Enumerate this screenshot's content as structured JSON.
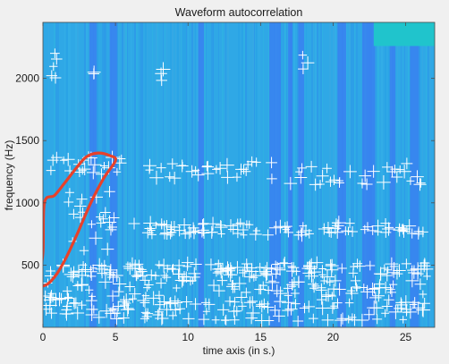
{
  "chart_data": {
    "type": "heatmap",
    "title": "Waveform autocorrelation",
    "xlabel": "time axis (in s.)",
    "ylabel": "frequency (Hz)",
    "xlim": [
      0,
      27
    ],
    "ylim": [
      0,
      2450
    ],
    "xticks": [
      "0",
      "5",
      "10",
      "15",
      "20",
      "25"
    ],
    "xtick_values": [
      0,
      5,
      10,
      15,
      20,
      25
    ],
    "yticks": [
      "500",
      "1000",
      "1500",
      "2000"
    ],
    "ytick_values": [
      500,
      1000,
      1500,
      2000
    ],
    "background_color": "#2fa8e6",
    "dark_stripe_color": "#3b7cf2",
    "corner_patch_color": "#20c4cc",
    "marker_color": "#ffffff",
    "annotation_color": "#e8412a",
    "dark_stripes_x": [
      [
        3.2,
        3.7
      ],
      [
        4.6,
        5.1
      ],
      [
        10.7,
        11.1
      ],
      [
        15.6,
        16.4
      ],
      [
        16.9,
        17.2
      ],
      [
        17.6,
        18.0
      ],
      [
        20.3,
        20.9
      ],
      [
        22.0,
        22.9
      ],
      [
        23.9,
        24.3
      ],
      [
        25.3,
        25.9
      ]
    ],
    "corner_patch": {
      "x": [
        22.8,
        27
      ],
      "y": [
        2260,
        2450
      ]
    },
    "marker_clusters": [
      {
        "x": [
          0,
          26.5
        ],
        "y": [
          50,
          380
        ],
        "count": 220
      },
      {
        "x": [
          0.3,
          26.5
        ],
        "y": [
          400,
          520
        ],
        "count": 140
      },
      {
        "x": [
          6,
          26.5
        ],
        "y": [
          740,
          840
        ],
        "count": 95
      },
      {
        "x": [
          1.5,
          5
        ],
        "y": [
          560,
          1100
        ],
        "count": 22
      },
      {
        "x": [
          0.5,
          5.6
        ],
        "y": [
          1220,
          1370
        ],
        "count": 22
      },
      {
        "x": [
          7.2,
          15.8
        ],
        "y": [
          1180,
          1340
        ],
        "count": 28
      },
      {
        "x": [
          17,
          26.3
        ],
        "y": [
          1140,
          1330
        ],
        "count": 30
      },
      {
        "x": [
          0.6,
          1.1
        ],
        "y": [
          1970,
          2220
        ],
        "count": 5
      },
      {
        "x": [
          3.4,
          3.8
        ],
        "y": [
          1980,
          2120
        ],
        "count": 2
      },
      {
        "x": [
          8,
          8.3
        ],
        "y": [
          1980,
          2100
        ],
        "count": 3
      },
      {
        "x": [
          17.9,
          18.3
        ],
        "y": [
          1990,
          2200
        ],
        "count": 3
      }
    ],
    "annotation_outline": [
      [
        0.1,
        1000
      ],
      [
        0.0,
        600
      ],
      [
        -0.3,
        360
      ],
      [
        0.2,
        340
      ],
      [
        0.9,
        420
      ],
      [
        1.6,
        560
      ],
      [
        2.4,
        760
      ],
      [
        3.3,
        1000
      ],
      [
        4.2,
        1200
      ],
      [
        5.0,
        1340
      ],
      [
        4.6,
        1380
      ],
      [
        3.8,
        1400
      ],
      [
        3.0,
        1370
      ],
      [
        2.3,
        1280
      ],
      [
        1.5,
        1160
      ],
      [
        0.8,
        1060
      ]
    ]
  }
}
